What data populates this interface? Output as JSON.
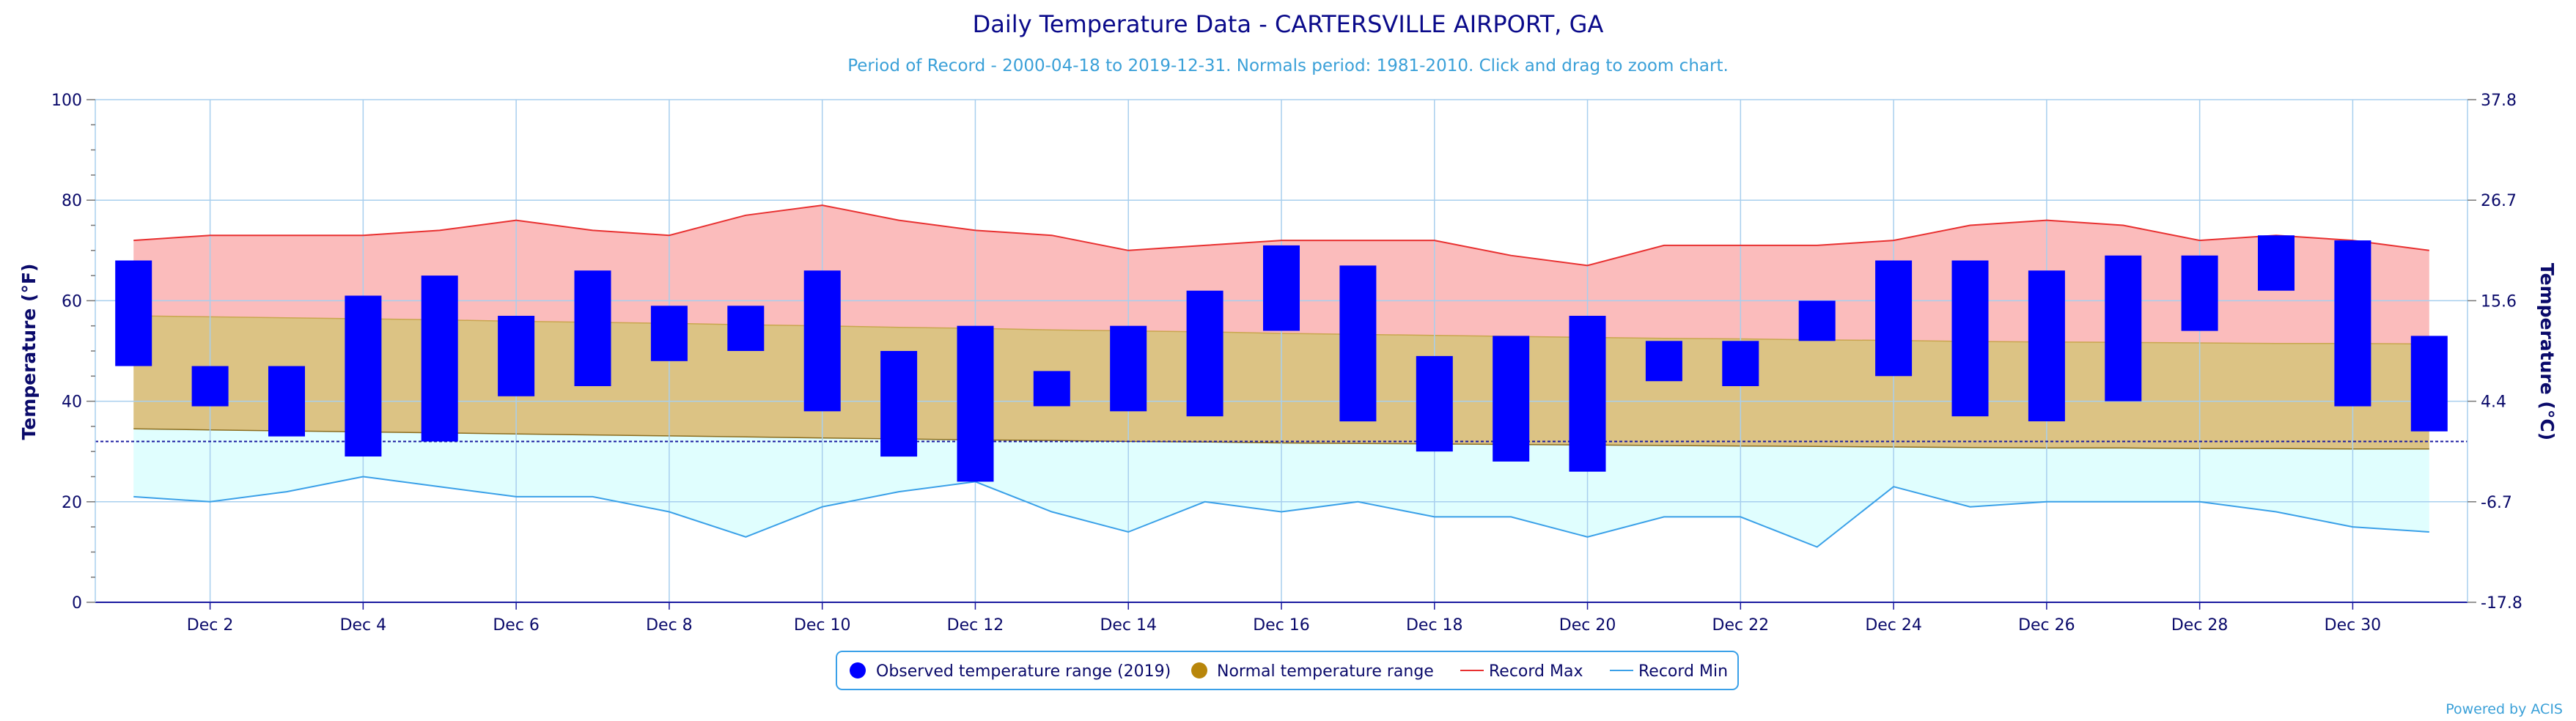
{
  "chart_data": {
    "type": "bar",
    "title": "Daily Temperature Data - CARTERSVILLE AIRPORT, GA",
    "subtitle": "Period of Record - 2000-04-18 to 2019-12-31. Normals period: 1981-2010. Click and drag to zoom chart.",
    "ylabel_left": "Temperature (°F)",
    "ylabel_right": "Temperature (°C)",
    "ylim": [
      0,
      100
    ],
    "left_ticks": [
      0,
      20,
      40,
      60,
      80,
      100
    ],
    "right_ticks": [
      "37.8",
      "26.7",
      "15.6",
      "4.4",
      "-6.7",
      "-17.8"
    ],
    "right_tick_values_f": [
      100,
      80,
      60,
      40,
      20,
      0
    ],
    "freezing_line_f": 32,
    "x_days": [
      1,
      2,
      3,
      4,
      5,
      6,
      7,
      8,
      9,
      10,
      11,
      12,
      13,
      14,
      15,
      16,
      17,
      18,
      19,
      20,
      21,
      22,
      23,
      24,
      25,
      26,
      27,
      28,
      29,
      30,
      31
    ],
    "x_tick_days": [
      2,
      4,
      6,
      8,
      10,
      12,
      14,
      16,
      18,
      20,
      22,
      24,
      26,
      28,
      30
    ],
    "x_tick_labels": [
      "Dec 2",
      "Dec 4",
      "Dec 6",
      "Dec 8",
      "Dec 10",
      "Dec 12",
      "Dec 14",
      "Dec 16",
      "Dec 18",
      "Dec 20",
      "Dec 22",
      "Dec 24",
      "Dec 26",
      "Dec 28",
      "Dec 30"
    ],
    "series": [
      {
        "name": "Observed temperature range (2019)",
        "color": "#0000ff",
        "low": [
          47,
          39,
          33,
          29,
          32,
          41,
          43,
          48,
          50,
          38,
          29,
          24,
          39,
          38,
          37,
          54,
          36,
          30,
          28,
          26,
          44,
          43,
          52,
          45,
          37,
          36,
          40,
          54,
          62,
          39,
          34
        ],
        "high": [
          68,
          47,
          47,
          61,
          65,
          57,
          66,
          59,
          59,
          66,
          50,
          55,
          46,
          55,
          62,
          71,
          67,
          49,
          53,
          57,
          52,
          52,
          60,
          68,
          68,
          66,
          69,
          69,
          73,
          72,
          53
        ]
      },
      {
        "name": "Normal temperature range",
        "color": "#b8860b",
        "low": [
          34.5,
          34.3,
          34.1,
          33.9,
          33.7,
          33.5,
          33.3,
          33.1,
          32.9,
          32.7,
          32.5,
          32.3,
          32.2,
          32.0,
          31.9,
          31.7,
          31.6,
          31.5,
          31.4,
          31.3,
          31.2,
          31.1,
          31.0,
          30.9,
          30.8,
          30.7,
          30.7,
          30.6,
          30.6,
          30.5,
          30.5
        ],
        "high": [
          57,
          56.8,
          56.6,
          56.4,
          56.2,
          55.9,
          55.7,
          55.5,
          55.2,
          55.0,
          54.7,
          54.5,
          54.2,
          54.0,
          53.8,
          53.5,
          53.3,
          53.1,
          52.9,
          52.7,
          52.5,
          52.4,
          52.2,
          52.1,
          51.9,
          51.8,
          51.7,
          51.6,
          51.5,
          51.5,
          51.4
        ]
      },
      {
        "name": "Record Max",
        "color": "#e83030",
        "values": [
          72,
          73,
          73,
          73,
          74,
          76,
          74,
          73,
          77,
          79,
          76,
          74,
          73,
          70,
          71,
          72,
          72,
          72,
          69,
          67,
          71,
          71,
          71,
          72,
          75,
          76,
          75,
          72,
          73,
          72,
          70
        ]
      },
      {
        "name": "Record Min",
        "color": "#3aa0e8",
        "values": [
          21,
          20,
          22,
          25,
          23,
          21,
          21,
          18,
          13,
          19,
          22,
          24,
          18,
          14,
          20,
          18,
          20,
          17,
          17,
          13,
          17,
          17,
          11,
          23,
          19,
          20,
          20,
          20,
          18,
          15,
          14
        ]
      }
    ],
    "legend_position": "bottom-center",
    "grid": true
  },
  "credits": "Powered by ACIS"
}
